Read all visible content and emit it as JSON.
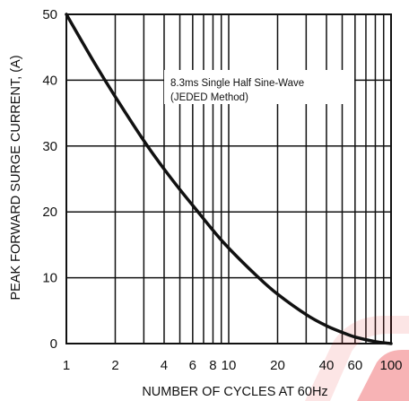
{
  "chart_data": {
    "type": "line",
    "xscale": "log",
    "xlim": [
      1,
      100
    ],
    "ylim": [
      0,
      50
    ],
    "xlabel": "NUMBER OF CYCLES AT 60Hz",
    "ylabel": "PEAK FORWARD SURGE CURRENT, (A)",
    "xticks": [
      1,
      2,
      4,
      6,
      8,
      10,
      20,
      40,
      60,
      100
    ],
    "xtick_labels": [
      "1",
      "2",
      "4",
      "6",
      "8",
      "10",
      "20",
      "40",
      "60",
      "100"
    ],
    "yticks": [
      0,
      10,
      20,
      30,
      40,
      50
    ],
    "ytick_labels": [
      "0",
      "10",
      "20",
      "30",
      "40",
      "50"
    ],
    "grid": true,
    "annotation": [
      "8.3ms Single Half Sine-Wave",
      "(JEDED Method)"
    ],
    "series": [
      {
        "x": [
          1,
          1.5,
          2,
          3,
          4,
          5,
          6,
          8,
          10,
          15,
          20,
          30,
          40,
          50,
          60,
          80,
          100
        ],
        "y": [
          50,
          42.5,
          37.5,
          30.8,
          26.5,
          23.4,
          21,
          17.2,
          14.5,
          10.2,
          7.5,
          4.4,
          2.7,
          1.7,
          1,
          0.3,
          0
        ]
      }
    ]
  },
  "colors": {
    "curve": "#111111",
    "grid": "#111111",
    "watermark": "#e8262b"
  }
}
